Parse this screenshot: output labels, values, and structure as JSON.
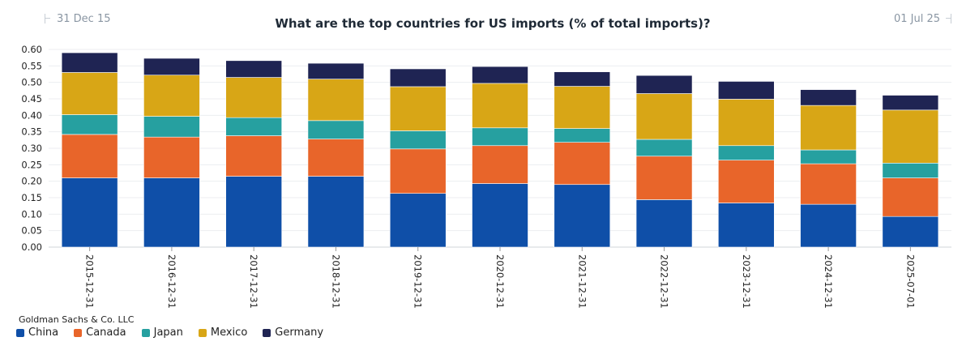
{
  "range": {
    "start": "31 Dec 15",
    "end": "01 Jul 25"
  },
  "source": "Goldman Sachs & Co. LLC",
  "chart_data": {
    "type": "bar",
    "stacked": true,
    "title": "What are the top countries for US imports (% of total imports)?",
    "xlabel": "",
    "ylabel": "",
    "ylim": [
      0,
      0.6
    ],
    "yticks": [
      "0.00",
      "0.05",
      "0.10",
      "0.15",
      "0.20",
      "0.25",
      "0.30",
      "0.35",
      "0.40",
      "0.45",
      "0.50",
      "0.55",
      "0.60"
    ],
    "grid": true,
    "legend_position": "bottom-left",
    "categories": [
      "2015-12-31",
      "2016-12-31",
      "2017-12-31",
      "2018-12-31",
      "2019-12-31",
      "2020-12-31",
      "2021-12-31",
      "2022-12-31",
      "2023-12-31",
      "2024-12-31",
      "2025-07-01"
    ],
    "series": [
      {
        "name": "China",
        "color": "#0f4fa8",
        "values": [
          0.21,
          0.21,
          0.215,
          0.215,
          0.163,
          0.193,
          0.19,
          0.144,
          0.134,
          0.13,
          0.093
        ]
      },
      {
        "name": "Canada",
        "color": "#e8652a",
        "values": [
          0.132,
          0.124,
          0.123,
          0.113,
          0.135,
          0.115,
          0.128,
          0.132,
          0.13,
          0.123,
          0.117
        ]
      },
      {
        "name": "Japan",
        "color": "#26a0a0",
        "values": [
          0.06,
          0.063,
          0.055,
          0.056,
          0.055,
          0.054,
          0.042,
          0.051,
          0.044,
          0.042,
          0.045
        ]
      },
      {
        "name": "Mexico",
        "color": "#d8a616",
        "values": [
          0.128,
          0.125,
          0.122,
          0.126,
          0.134,
          0.135,
          0.128,
          0.139,
          0.141,
          0.135,
          0.161
        ]
      },
      {
        "name": "Germany",
        "color": "#1f2453",
        "values": [
          0.06,
          0.051,
          0.051,
          0.048,
          0.054,
          0.051,
          0.044,
          0.055,
          0.054,
          0.048,
          0.045
        ]
      }
    ]
  }
}
